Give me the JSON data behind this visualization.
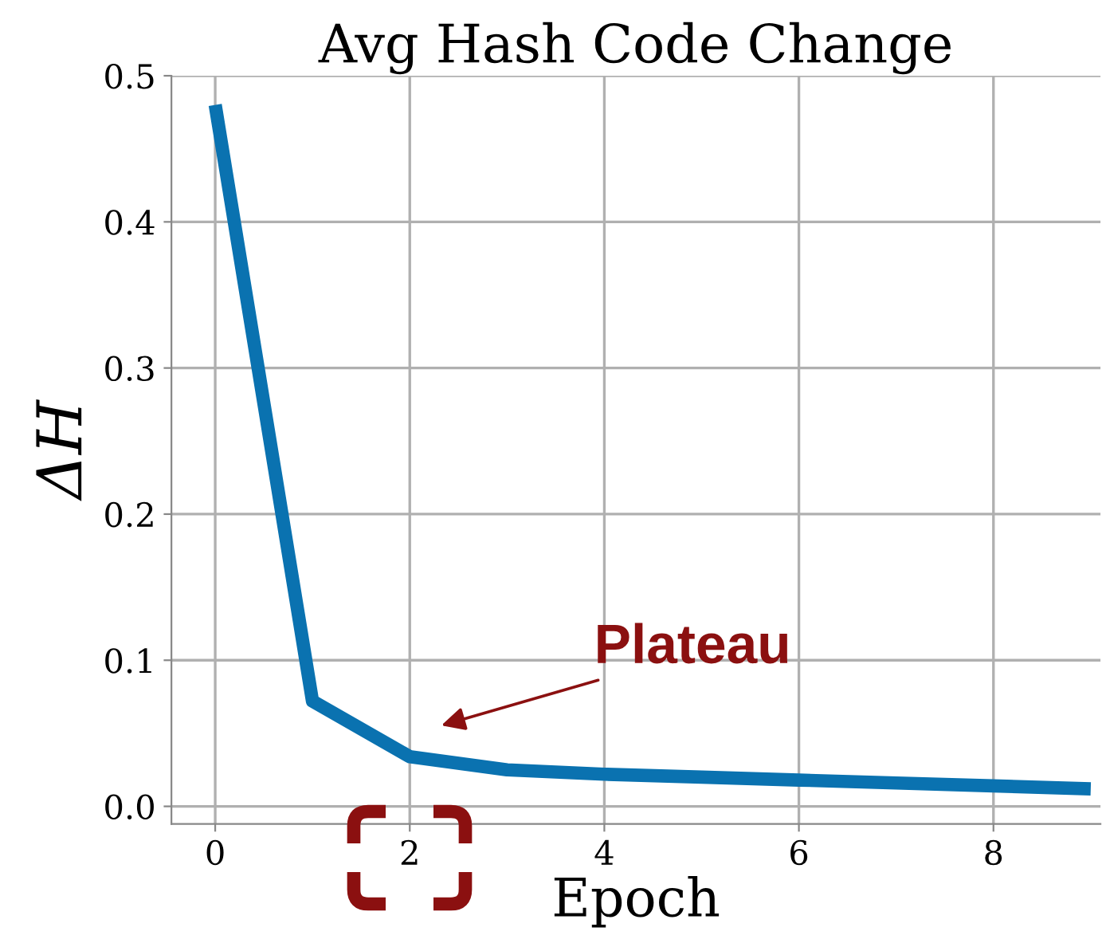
{
  "chart_data": {
    "type": "line",
    "title": "Avg Hash Code Change",
    "xlabel": "Epoch",
    "ylabel": "ΔH",
    "x": [
      0,
      1,
      2,
      3,
      4,
      5,
      6,
      7,
      8,
      9
    ],
    "series": [
      {
        "color": "#0a72b0",
        "values": [
          0.48,
          0.072,
          0.034,
          0.025,
          0.022,
          0.02,
          0.018,
          0.016,
          0.014,
          0.012
        ]
      }
    ],
    "xlim": [
      -0.45,
      9.1
    ],
    "xticks": [
      0,
      2,
      4,
      6,
      8
    ],
    "ylim": [
      -0.012,
      0.5
    ],
    "yticks": [
      {
        "value": 0,
        "label": "0.0"
      },
      0.1,
      0.2,
      0.3,
      0.4,
      0.5
    ],
    "grid": true,
    "marker": "none",
    "line_style": "solid",
    "annotations": [
      "Plateau"
    ]
  }
}
